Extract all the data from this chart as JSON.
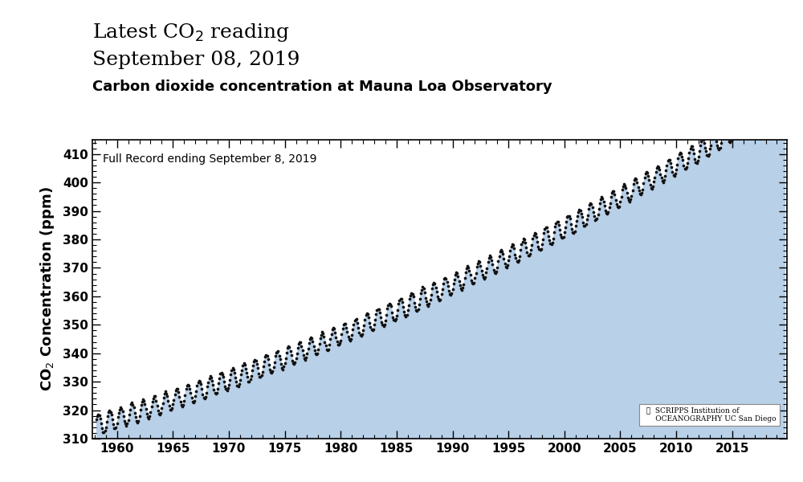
{
  "title_line1": "Latest CO",
  "title_sub": "2",
  "title_rest": " reading",
  "title_line2": "September 08, 2019",
  "subtitle": "Carbon dioxide concentration at Mauna Loa Observatory",
  "annotation": "Full Record ending September 8, 2019",
  "ylabel": "CO$_2$ Concentration (ppm)",
  "xlim": [
    1957.8,
    2019.9
  ],
  "ylim": [
    310,
    415
  ],
  "xticks": [
    1960,
    1965,
    1970,
    1975,
    1980,
    1985,
    1990,
    1995,
    2000,
    2005,
    2010,
    2015
  ],
  "yticks": [
    310,
    320,
    330,
    340,
    350,
    360,
    370,
    380,
    390,
    400,
    410
  ],
  "fill_color": "#b8d0e8",
  "dot_color": "#111111",
  "dot_size": 7,
  "background_color": "#ffffff",
  "axes_background": "#ffffff",
  "spine_color": "#000000",
  "title_fontsize": 18,
  "subtitle_fontsize": 13,
  "annotation_fontsize": 10,
  "ylabel_fontsize": 13,
  "tick_labelsize": 11
}
